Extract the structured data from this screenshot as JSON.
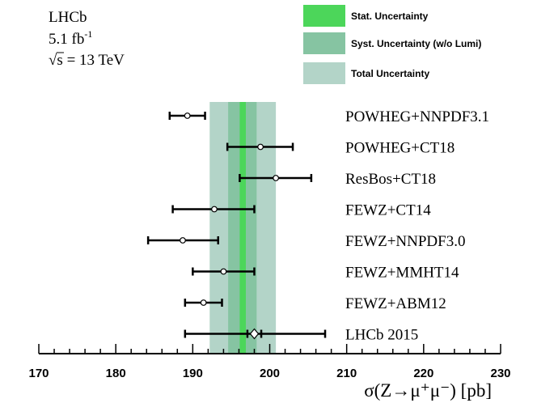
{
  "chart_data": {
    "type": "scatter",
    "title": "",
    "experiment": "LHCb",
    "luminosity_value": "5.1 fb",
    "luminosity_exp": "-1",
    "energy_sqrt": "√s",
    "energy_rest": " = 13 TeV",
    "xlabel": "σ(Z→μ⁺μ⁻) [pb]",
    "xlim": [
      170,
      230
    ],
    "xticks": [
      170,
      180,
      190,
      200,
      210,
      220,
      230
    ],
    "xtick_labels": [
      "170",
      "180",
      "190",
      "200",
      "210",
      "220",
      "230"
    ],
    "measurement": {
      "label": "LHCb 2015",
      "central": 198.0,
      "stat_band": [
        196.1,
        196.9
      ],
      "syst_band": [
        194.6,
        198.3
      ],
      "total_band": [
        192.2,
        200.8
      ],
      "error_low": 189.0,
      "error_high": 207.2,
      "inner_tick_low": 197.1,
      "inner_tick_high": 198.9
    },
    "legend": [
      {
        "label": "Stat. Uncertainty",
        "color": "#4cd65a"
      },
      {
        "label": "Syst. Uncertainty (w/o Lumi)",
        "color": "#86c4a2"
      },
      {
        "label": "Total Uncertainty",
        "color": "#b3d4c8"
      }
    ],
    "predictions": [
      {
        "label": "POWHEG+NNPDF3.1",
        "value": 189.3,
        "low": 187.0,
        "high": 191.6
      },
      {
        "label": "POWHEG+CT18",
        "value": 198.8,
        "low": 194.5,
        "high": 203.0
      },
      {
        "label": "ResBos+CT18",
        "value": 200.8,
        "low": 196.1,
        "high": 205.4
      },
      {
        "label": "FEWZ+CT14",
        "value": 192.8,
        "low": 187.4,
        "high": 198.0
      },
      {
        "label": "FEWZ+NNPDF3.0",
        "value": 188.7,
        "low": 184.2,
        "high": 193.3
      },
      {
        "label": "FEWZ+MMHT14",
        "value": 194.0,
        "low": 190.0,
        "high": 198.0
      },
      {
        "label": "FEWZ+ABM12",
        "value": 191.4,
        "low": 189.0,
        "high": 193.8
      }
    ]
  }
}
